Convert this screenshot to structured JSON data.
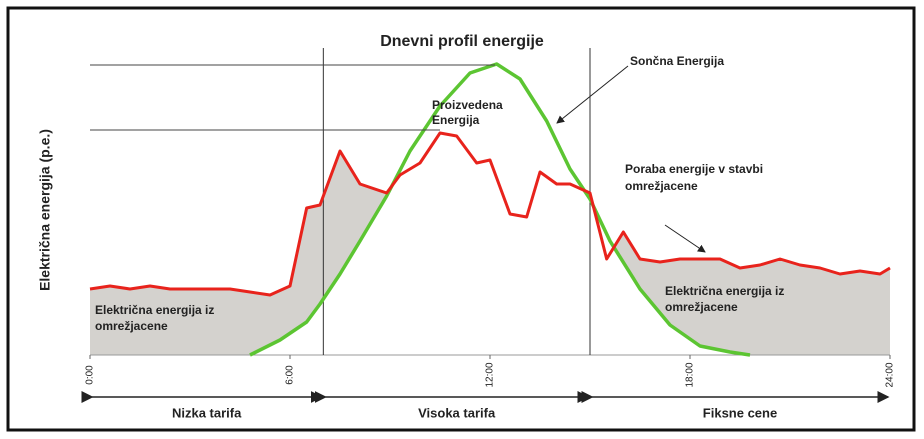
{
  "chart_data": {
    "type": "line",
    "title": "Dnevni profil energije",
    "y_label": "Električna energija (p.e.)",
    "xlim": [
      0,
      24
    ],
    "ylim": [
      0,
      100
    ],
    "xticks": [
      {
        "value": 0,
        "label": "0:00"
      },
      {
        "value": 6,
        "label": "6:00"
      },
      {
        "value": 12,
        "label": "12:00"
      },
      {
        "value": 18,
        "label": "18:00"
      },
      {
        "value": 24,
        "label": "24:00"
      }
    ],
    "series": [
      {
        "name": "Poraba energije",
        "color": "#e8231c",
        "x": [
          0,
          0.6,
          1.2,
          1.8,
          2.4,
          3.0,
          3.6,
          4.2,
          4.8,
          5.4,
          6.0,
          6.5,
          6.9,
          7.5,
          8.1,
          8.9,
          9.3,
          9.9,
          10.5,
          11.0,
          11.6,
          12.0,
          12.6,
          13.1,
          13.5,
          14.0,
          14.4,
          15.0,
          15.5,
          16.0,
          16.5,
          17.1,
          17.7,
          18.3,
          18.9,
          19.5,
          20.1,
          20.7,
          21.3,
          21.9,
          22.5,
          23.1,
          23.7,
          24
        ],
        "values": [
          22,
          23,
          22,
          23,
          22,
          22,
          22,
          22,
          21,
          20,
          23,
          49,
          50,
          68,
          57,
          54,
          60,
          64,
          74,
          73,
          64,
          65,
          47,
          46,
          61,
          57,
          57,
          54,
          32,
          41,
          32,
          31,
          32,
          32,
          32,
          29,
          30,
          32,
          30,
          29,
          27,
          28,
          27,
          29
        ]
      },
      {
        "name": "Sončna Energija",
        "color": "#5cc532",
        "x": [
          4.8,
          5.7,
          6.5,
          6.9,
          7.5,
          8.1,
          8.9,
          9.6,
          10.5,
          11.4,
          12.2,
          12.9,
          13.7,
          14.4,
          15.0,
          15.6,
          16.5,
          17.4,
          18.3,
          19.2,
          19.8
        ],
        "values": [
          0,
          5,
          11,
          17,
          27,
          38,
          53,
          68,
          83,
          94,
          97,
          92,
          78,
          62,
          52,
          38,
          22,
          10,
          3,
          1,
          0
        ]
      }
    ],
    "tariffs": [
      {
        "label": "Nizka tarifa",
        "from": 0,
        "to": 7
      },
      {
        "label": "Visoka tarifa",
        "from": 7,
        "to": 15
      },
      {
        "label": "Fiksne cene",
        "from": 15,
        "to": 24
      }
    ],
    "annotations": [
      [
        "Sončna Energija"
      ],
      [
        "Proizvedena",
        "Energija"
      ],
      [
        "Poraba energije v stavbi",
        "omrežjacene"
      ],
      [
        "Električna energija iz",
        "omrežjacene"
      ],
      [
        "Električna energija iz",
        "omrežjacene"
      ]
    ]
  }
}
